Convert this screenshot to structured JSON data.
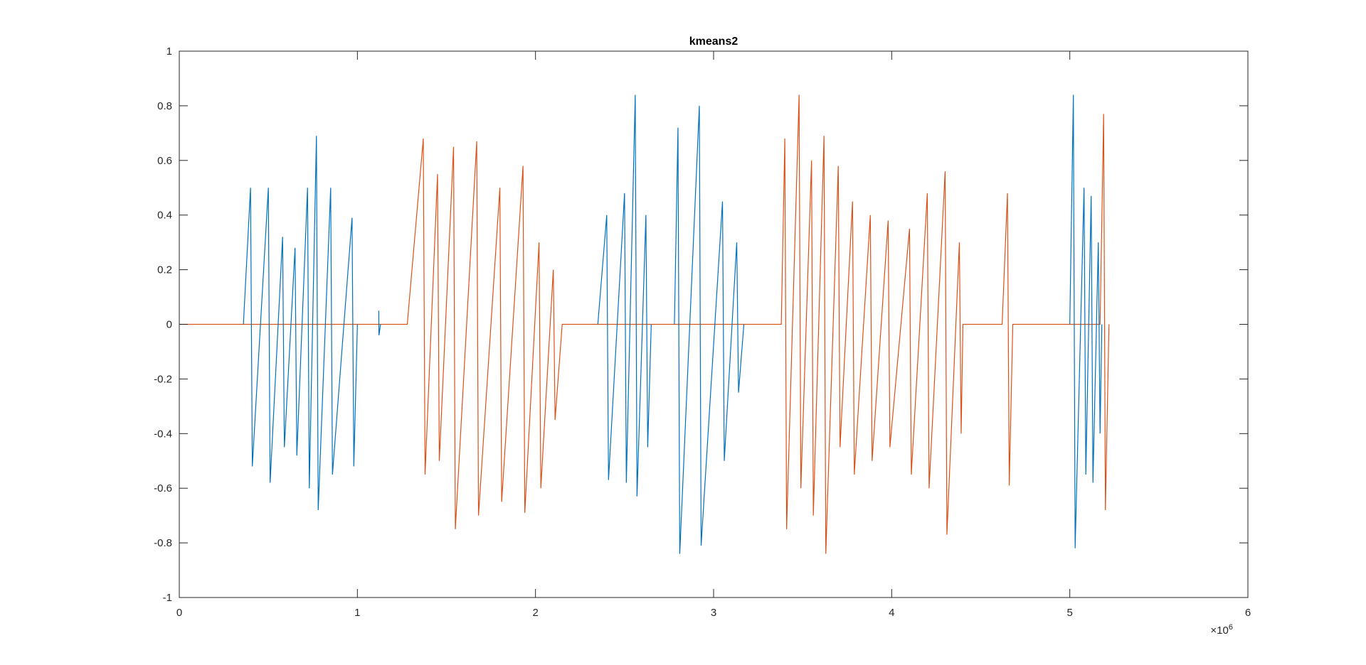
{
  "chart_data": {
    "type": "line",
    "title": "kmeans2",
    "x_multiplier": {
      "base": "×10",
      "power": "6"
    },
    "xlim": [
      0,
      6
    ],
    "xticks": [
      0,
      1,
      2,
      3,
      4,
      5,
      6
    ],
    "ylim": [
      -1,
      1
    ],
    "yticks": [
      -1,
      -0.8,
      -0.6,
      -0.4,
      -0.2,
      0,
      0.2,
      0.4,
      0.6,
      0.8,
      1
    ],
    "grid": false,
    "series": [
      {
        "color": "#D95319",
        "x": [
          0,
          1.28,
          1.37,
          1.38,
          1.45,
          1.46,
          1.54,
          1.55,
          1.67,
          1.68,
          1.8,
          1.81,
          1.93,
          1.94,
          2.02,
          2.03,
          2.1,
          2.11,
          2.15,
          3.38,
          3.4,
          3.41,
          3.48,
          3.49,
          3.55,
          3.56,
          3.62,
          3.63,
          3.7,
          3.71,
          3.78,
          3.79,
          3.88,
          3.89,
          3.98,
          3.99,
          4.1,
          4.11,
          4.2,
          4.21,
          4.3,
          4.31,
          4.38,
          4.39,
          4.4,
          4.62,
          4.65,
          4.66,
          4.68,
          5.17,
          5.19,
          5.2,
          5.22
        ],
        "values": [
          0,
          0,
          0.68,
          -0.55,
          0.55,
          -0.5,
          0.65,
          -0.75,
          0.67,
          -0.7,
          0.5,
          -0.65,
          0.58,
          -0.69,
          0.3,
          -0.6,
          0.2,
          -0.35,
          0,
          0,
          0.68,
          -0.75,
          0.84,
          -0.6,
          0.6,
          -0.7,
          0.69,
          -0.84,
          0.58,
          -0.45,
          0.45,
          -0.55,
          0.4,
          -0.5,
          0.38,
          -0.45,
          0.35,
          -0.55,
          0.48,
          -0.6,
          0.56,
          -0.77,
          0.3,
          -0.4,
          0,
          0,
          0.48,
          -0.59,
          0,
          0,
          0.77,
          -0.68,
          0
        ]
      },
      {
        "color": "#0072BD",
        "x": [
          0.36,
          0.4,
          0.41,
          0.5,
          0.51,
          0.58,
          0.59,
          0.65,
          0.66,
          0.72,
          0.73,
          0.77,
          0.78,
          0.85,
          0.86,
          0.97,
          0.98,
          1.0,
          1.05,
          1.12,
          1.121,
          1.13,
          2.0,
          2.35,
          2.4,
          2.41,
          2.5,
          2.51,
          2.56,
          2.57,
          2.62,
          2.63,
          2.65,
          2.7,
          2.78,
          2.8,
          2.81,
          2.92,
          2.93,
          3.05,
          3.06,
          3.13,
          3.14,
          3.17,
          4.0,
          5.0,
          5.02,
          5.03,
          5.08,
          5.09,
          5.12,
          5.13,
          5.16,
          5.17,
          5.18
        ],
        "values": [
          0,
          0.5,
          -0.52,
          0.5,
          -0.58,
          0.32,
          -0.45,
          0.28,
          -0.48,
          0.5,
          -0.6,
          0.69,
          -0.68,
          0.5,
          -0.55,
          0.39,
          -0.52,
          0,
          null,
          0.05,
          -0.04,
          0,
          null,
          0,
          0.4,
          -0.57,
          0.48,
          -0.58,
          0.84,
          -0.63,
          0.4,
          -0.45,
          0,
          null,
          0,
          0.72,
          -0.84,
          0.8,
          -0.81,
          0.45,
          -0.5,
          0.3,
          -0.25,
          0,
          null,
          0,
          0.84,
          -0.82,
          0.5,
          -0.55,
          0.47,
          -0.58,
          0.3,
          -0.4,
          0
        ]
      }
    ]
  }
}
